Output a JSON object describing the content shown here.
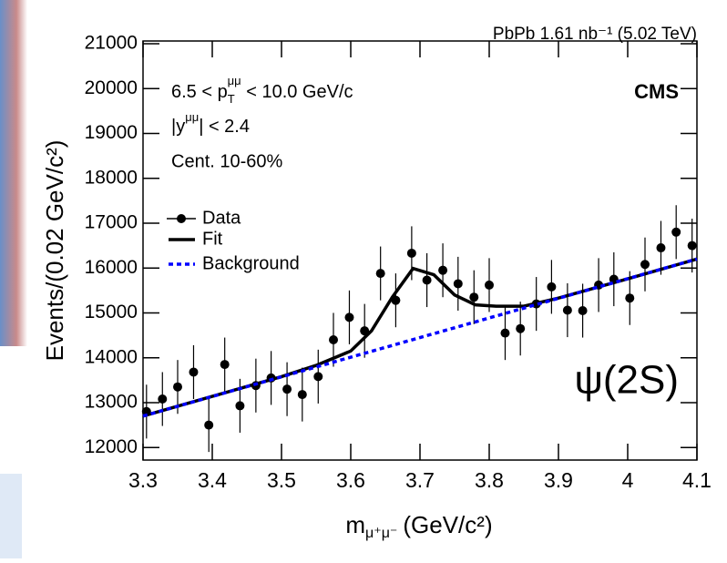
{
  "chart_data": {
    "type": "scatter",
    "title": "PbPb 1.61 nb⁻¹ (5.02 TeV)",
    "x_label": "m",
    "x_label_sub": "μ⁺μ⁻",
    "x_label_unit": "(GeV/c²)",
    "y_label": "Events/(0.02 GeV/c²)",
    "annotations": [
      [
        "6.5 < p",
        "T",
        "μμ",
        " < 10.0 GeV/c"
      ],
      [
        "|y",
        "μμ",
        "| < 2.4"
      ],
      [
        "Cent. 10-60%"
      ]
    ],
    "experiment": "CMS",
    "state": "ψ(2S)",
    "state_color": "#0000ee",
    "xlim": [
      3.3,
      4.1
    ],
    "xticks": [
      3.3,
      3.4,
      3.5,
      3.6,
      3.7,
      3.8,
      3.9,
      {
        "value": 4.0,
        "label": "4"
      },
      4.1
    ],
    "ylim": [
      11720,
      21060
    ],
    "yticks": [
      12000,
      13000,
      14000,
      15000,
      16000,
      17000,
      18000,
      19000,
      20000,
      21000
    ],
    "series": [
      {
        "name": "Data",
        "color": "#000000",
        "kind": "points",
        "x": [
          3.305,
          3.328,
          3.35,
          3.373,
          3.395,
          3.418,
          3.44,
          3.463,
          3.485,
          3.508,
          3.53,
          3.553,
          3.575,
          3.598,
          3.62,
          3.643,
          3.665,
          3.688,
          3.71,
          3.733,
          3.755,
          3.778,
          3.8,
          3.823,
          3.845,
          3.868,
          3.89,
          3.913,
          3.935,
          3.958,
          3.98,
          4.003,
          4.025,
          4.048,
          4.07,
          4.093
        ],
        "values": [
          12800,
          13080,
          13350,
          13680,
          12500,
          13850,
          12930,
          13380,
          13550,
          13300,
          13180,
          13580,
          14400,
          14900,
          14600,
          15880,
          15280,
          16330,
          15730,
          15950,
          15650,
          15350,
          15620,
          14550,
          14650,
          15200,
          15580,
          15060,
          15050,
          15620,
          15750,
          15330,
          16080,
          16450,
          16800,
          16500
        ],
        "errors": [
          600,
          600,
          600,
          600,
          600,
          600,
          600,
          600,
          600,
          600,
          600,
          600,
          600,
          600,
          600,
          600,
          600,
          600,
          600,
          600,
          600,
          600,
          600,
          600,
          600,
          600,
          600,
          600,
          600,
          600,
          600,
          600,
          600,
          600,
          600,
          600
        ]
      },
      {
        "name": "Fit",
        "color": "#000000",
        "kind": "line",
        "x": [
          3.3,
          3.4,
          3.5,
          3.55,
          3.6,
          3.63,
          3.66,
          3.69,
          3.72,
          3.75,
          3.78,
          3.81,
          3.85,
          3.9,
          4.0,
          4.1
        ],
        "values": [
          12700,
          13140,
          13580,
          13830,
          14150,
          14600,
          15350,
          15990,
          15850,
          15400,
          15180,
          15150,
          15150,
          15330,
          15760,
          16200
        ]
      },
      {
        "name": "Background",
        "color": "#0000ff",
        "kind": "dashed",
        "x": [
          3.3,
          4.1
        ],
        "values": [
          12700,
          16200
        ]
      }
    ]
  }
}
